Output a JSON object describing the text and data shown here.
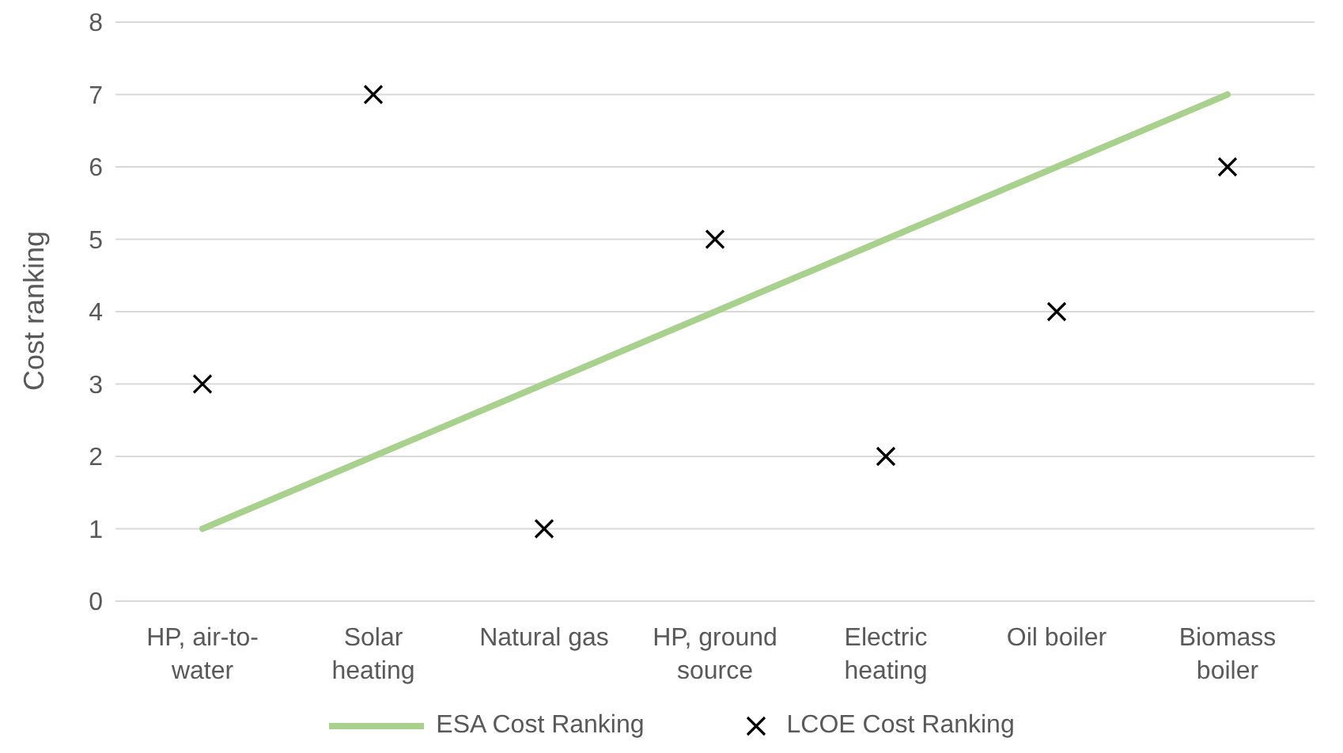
{
  "chart_data": {
    "type": "line",
    "ylabel": "Cost ranking",
    "categories": [
      "HP, air-to-water",
      "Solar heating",
      "Natural gas",
      "HP, ground source",
      "Electric heating",
      "Oil boiler",
      "Biomass boiler"
    ],
    "series": [
      {
        "name": "ESA Cost Ranking",
        "color": "#a9d18e",
        "values": [
          1,
          2,
          3,
          4,
          5,
          6,
          7
        ]
      },
      {
        "name": "LCOE Cost Ranking",
        "type": "scatter",
        "color": "#000000",
        "marker": "cross",
        "values": [
          3,
          7,
          1,
          5,
          2,
          4,
          6
        ]
      }
    ],
    "ylim": [
      0,
      8
    ],
    "yticks": [
      0,
      1,
      2,
      3,
      4,
      5,
      6,
      7,
      8
    ],
    "grid": "y",
    "legend": "bottom"
  }
}
